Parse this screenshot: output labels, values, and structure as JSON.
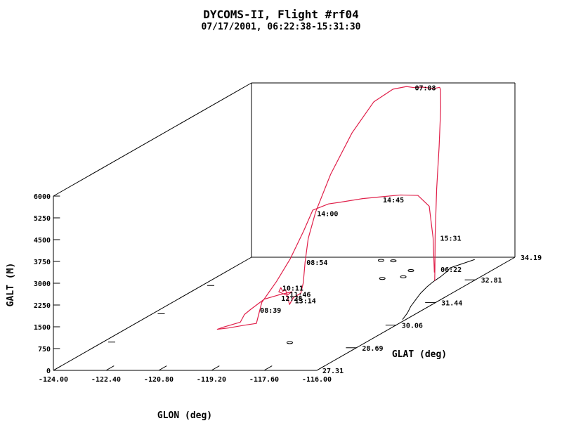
{
  "chart_data": {
    "type": "line",
    "title": "DYCOMS-II, Flight #rf04",
    "subtitle": "07/17/2001, 06:22:38-15:31:30",
    "xlabel": "GLON (deg)",
    "ylabel": "GLAT (deg)",
    "zlabel": "GALT (M)",
    "xlim": [
      -124.0,
      -116.0
    ],
    "ylim": [
      27.31,
      34.19
    ],
    "zlim": [
      0,
      6000
    ],
    "xticks": [
      "-124.00",
      "-122.40",
      "-120.80",
      "-119.20",
      "-117.60",
      "-116.00"
    ],
    "yticks": [
      "27.31",
      "28.69",
      "30.06",
      "31.44",
      "32.81",
      "34.19"
    ],
    "zticks": [
      "0",
      "750",
      "1500",
      "2250",
      "3000",
      "3750",
      "4500",
      "5250",
      "6000"
    ],
    "grid": false,
    "series": [
      {
        "color": "#e0204a",
        "points": [
          [
            -117.16,
            32.73,
            20
          ],
          [
            -117.18,
            32.76,
            400
          ],
          [
            -117.26,
            32.86,
            1500
          ],
          [
            -117.38,
            33.05,
            3000
          ],
          [
            -117.55,
            33.33,
            4300
          ],
          [
            -117.72,
            33.58,
            5500
          ],
          [
            -117.9,
            33.78,
            6000
          ],
          [
            -118.05,
            33.92,
            6000
          ],
          [
            -118.25,
            33.94,
            5950
          ],
          [
            -118.6,
            33.95,
            5990
          ],
          [
            -118.9,
            33.98,
            5960
          ],
          [
            -119.1,
            33.97,
            6000
          ],
          [
            -119.45,
            33.9,
            5950
          ],
          [
            -119.9,
            33.75,
            5600
          ],
          [
            -120.3,
            33.45,
            4700
          ],
          [
            -120.6,
            33.05,
            3500
          ],
          [
            -120.75,
            32.7,
            2400
          ],
          [
            -120.8,
            32.5,
            1600
          ],
          [
            -120.72,
            32.3,
            900
          ],
          [
            -120.6,
            32.1,
            300
          ],
          [
            -120.5,
            31.9,
            60
          ],
          [
            -120.4,
            31.65,
            120
          ],
          [
            -120.2,
            31.3,
            250
          ],
          [
            -120.1,
            31.05,
            150
          ],
          [
            -120.0,
            30.8,
            800
          ],
          [
            -120.0,
            30.7,
            800
          ],
          [
            -120.1,
            30.75,
            900
          ],
          [
            -120.25,
            30.85,
            700
          ],
          [
            -120.05,
            30.9,
            550
          ],
          [
            -119.85,
            30.85,
            700
          ],
          [
            -120.0,
            30.55,
            760
          ],
          [
            -120.3,
            30.4,
            700
          ],
          [
            -120.55,
            30.2,
            450
          ],
          [
            -120.55,
            30.0,
            400
          ],
          [
            -120.5,
            29.8,
            250
          ],
          [
            -120.75,
            29.5,
            250
          ],
          [
            -120.85,
            29.4,
            230
          ],
          [
            -120.6,
            29.5,
            220
          ],
          [
            -120.3,
            29.7,
            200
          ],
          [
            -120.1,
            29.9,
            150
          ],
          [
            -120.2,
            30.2,
            700
          ],
          [
            -120.1,
            30.6,
            1200
          ],
          [
            -119.95,
            30.9,
            1800
          ],
          [
            -119.8,
            31.2,
            2600
          ],
          [
            -119.7,
            31.4,
            3200
          ],
          [
            -119.4,
            31.6,
            3300
          ],
          [
            -119.2,
            31.8,
            3250
          ],
          [
            -118.8,
            32.1,
            3200
          ],
          [
            -118.4,
            32.3,
            3150
          ],
          [
            -118.0,
            32.5,
            3100
          ],
          [
            -117.6,
            32.65,
            3000
          ],
          [
            -117.3,
            32.7,
            2600
          ],
          [
            -117.2,
            32.72,
            1500
          ],
          [
            -117.17,
            32.73,
            300
          ]
        ]
      }
    ],
    "annotations": [
      {
        "text": "07:08"
      },
      {
        "text": "14:45"
      },
      {
        "text": "08:54"
      },
      {
        "text": "14:00"
      },
      {
        "text": "08:39"
      },
      {
        "text": "11:46"
      },
      {
        "text": "12:28"
      },
      {
        "text": "10:11"
      },
      {
        "text": "13:14"
      },
      {
        "text": "06:22"
      },
      {
        "text": "15:31"
      }
    ]
  }
}
